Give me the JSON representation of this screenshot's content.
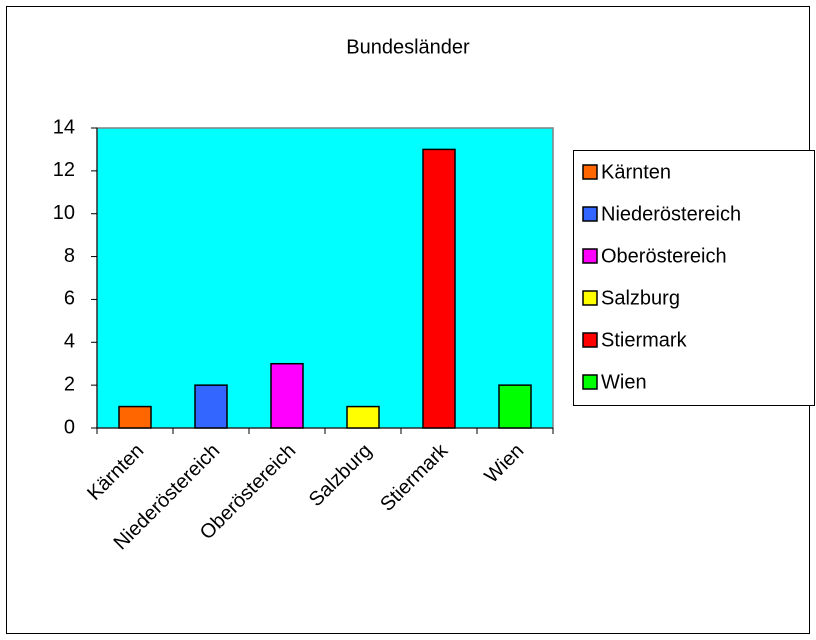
{
  "chart_data": {
    "type": "bar",
    "title": "Bundesländer",
    "categories": [
      "Kärnten",
      "Niederöstereich",
      "Oberöstereich",
      "Salzburg",
      "Stiermark",
      "Wien"
    ],
    "values": [
      1,
      2,
      3,
      1,
      13,
      2
    ],
    "colors": [
      "#ff6600",
      "#3366ff",
      "#ff00ff",
      "#ffff00",
      "#ff0000",
      "#00ff00"
    ],
    "ylim": [
      0,
      14
    ],
    "yticks": [
      0,
      2,
      4,
      6,
      8,
      10,
      12,
      14
    ],
    "plot_background": "#00ffff",
    "legend": "right"
  }
}
